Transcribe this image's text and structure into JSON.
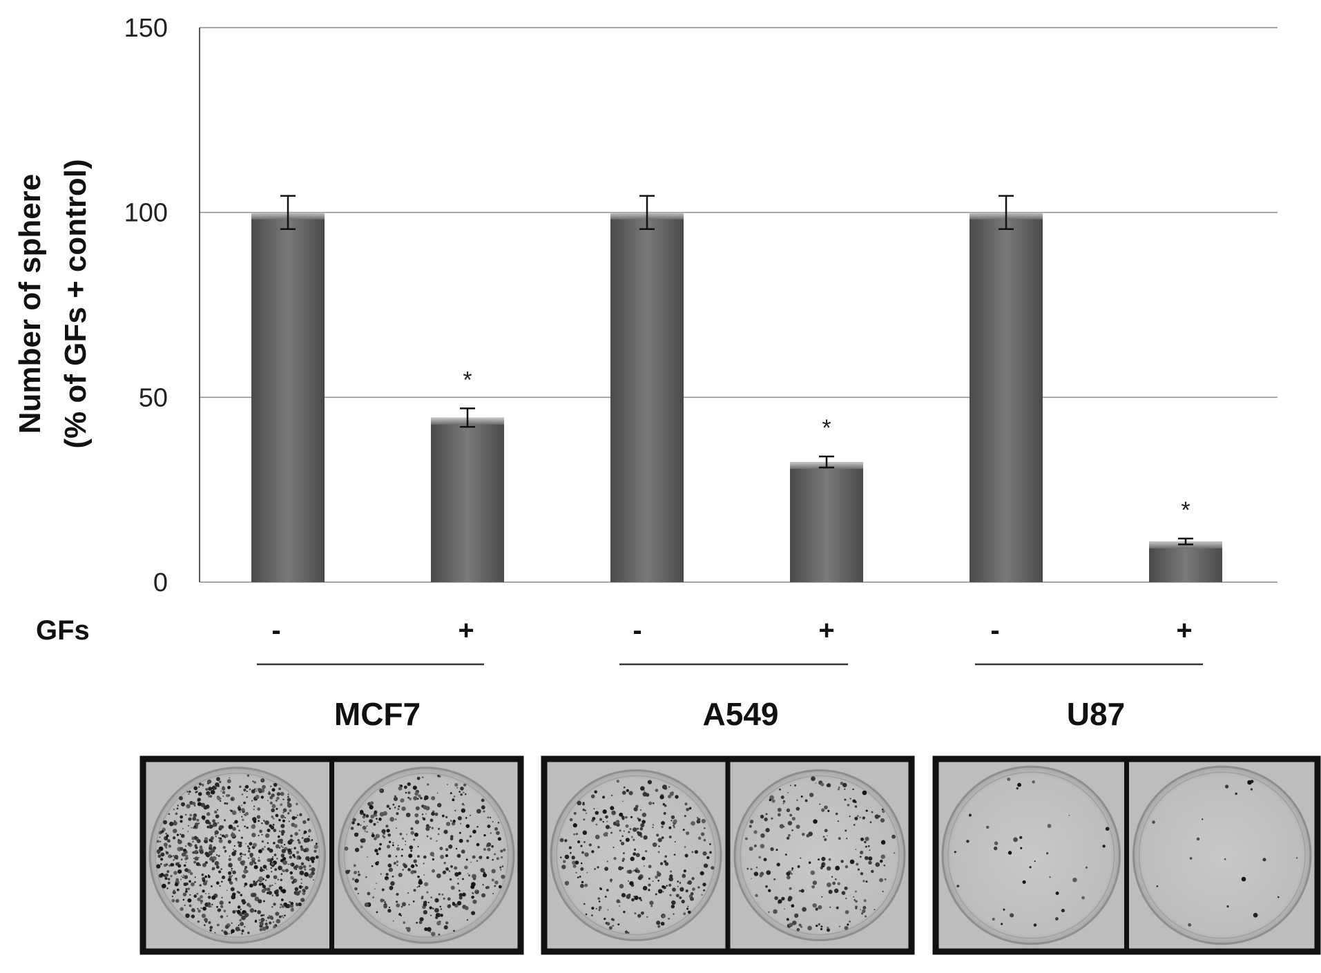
{
  "chart_data": {
    "type": "bar",
    "ylabel_line1": "Number of sphere",
    "ylabel_line2": "(% of GFs + control)",
    "ylim": [
      0,
      150
    ],
    "yticks": [
      "0",
      "50",
      "100",
      "150"
    ],
    "grid": true,
    "row_label": "GFs",
    "categories": [
      "-",
      "+",
      "-",
      "+",
      "-",
      "+"
    ],
    "groups": [
      "MCF7",
      "A549",
      "U87"
    ],
    "values": [
      100,
      44.5,
      100,
      32.5,
      100,
      11
    ],
    "errors": [
      4.5,
      2.5,
      4.5,
      1.5,
      4.5,
      0.8
    ],
    "significance": [
      "",
      "*",
      "",
      "*",
      "",
      "*"
    ],
    "bar_color": "#6e6e6e",
    "photo_panels": [
      {
        "group": "MCF7",
        "wells": [
          "-",
          "+"
        ],
        "density": [
          0.9,
          0.45
        ]
      },
      {
        "group": "A549",
        "wells": [
          "-",
          "+"
        ],
        "density": [
          0.35,
          0.25
        ]
      },
      {
        "group": "U87",
        "wells": [
          "-",
          "+"
        ],
        "density": [
          0.04,
          0.02
        ]
      }
    ]
  }
}
